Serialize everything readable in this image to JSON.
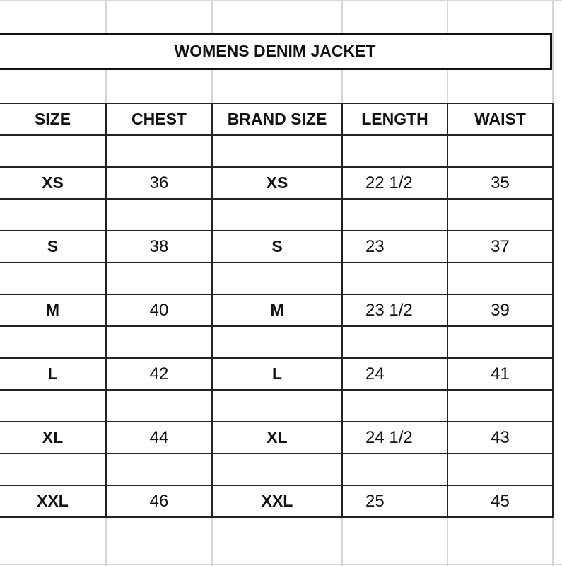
{
  "title": "WOMENS DENIM JACKET",
  "headers": [
    "SIZE",
    "CHEST",
    "BRAND SIZE",
    "LENGTH",
    "WAIST"
  ],
  "rows": [
    [
      "XS",
      "36",
      "XS",
      "22 1/2",
      "35"
    ],
    [
      "S",
      "38",
      "S",
      "23",
      "37"
    ],
    [
      "M",
      "40",
      "M",
      "23 1/2",
      "39"
    ],
    [
      "L",
      "42",
      "L",
      "24",
      "41"
    ],
    [
      "XL",
      "44",
      "XL",
      "24 1/2",
      "43"
    ],
    [
      "XXL",
      "46",
      "XXL",
      "25",
      "45"
    ]
  ]
}
